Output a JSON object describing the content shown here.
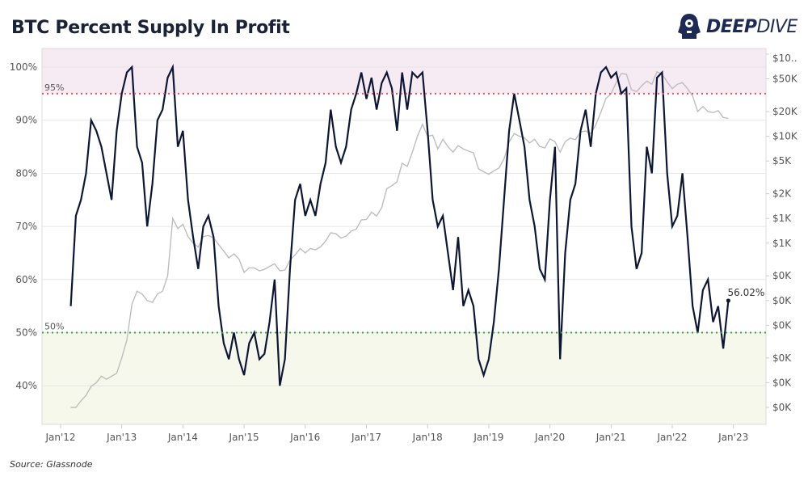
{
  "header": {
    "title": "BTC Percent Supply In Profit",
    "logo_text": "DEEPDIVE"
  },
  "footer": {
    "source": "Source: Glassnode"
  },
  "colors": {
    "profit_line": "#0e1636",
    "price_line": "#bdbdbd",
    "upper_band": "#f6ebf3",
    "lower_band": "#f5f8ea",
    "line_95": "#f0505a",
    "line_50": "#33aa33"
  },
  "chart_data": {
    "type": "line",
    "title": "BTC Percent Supply In Profit",
    "x_tick_labels": [
      "Jan'12",
      "Jan'13",
      "Jan'14",
      "Jan'15",
      "Jan'16",
      "Jan'17",
      "Jan'18",
      "Jan'19",
      "Jan'20",
      "Jan'21",
      "Jan'22",
      "Jan'23"
    ],
    "y_left": {
      "ticks": [
        "40%",
        "50%",
        "60%",
        "70%",
        "80%",
        "90%",
        "100%"
      ],
      "range": [
        34,
        104
      ],
      "grid": true
    },
    "y_right": {
      "scale": "log",
      "ticks": [
        "$10..",
        "$50K",
        "$20K",
        "$10K",
        "$5K",
        "$2K",
        "$1K",
        "$1K",
        "$0K",
        "$0K",
        "$0K",
        "$0K",
        "$0K",
        "$0K"
      ]
    },
    "reference_lines": [
      {
        "value": 95,
        "label": "95%"
      },
      {
        "value": 50,
        "label": "50%"
      }
    ],
    "last_value_label": "56.02%",
    "start": "2012-03",
    "frequency": "monthly",
    "series": [
      {
        "axis": "left",
        "values": [
          55,
          72,
          75,
          80,
          90,
          88,
          85,
          80,
          75,
          88,
          95,
          99,
          100,
          85,
          82,
          70,
          78,
          90,
          92,
          98,
          100,
          85,
          88,
          75,
          68,
          62,
          70,
          72,
          68,
          55,
          48,
          45,
          50,
          45,
          42,
          48,
          50,
          45,
          46,
          52,
          60,
          40,
          45,
          62,
          75,
          78,
          72,
          75,
          72,
          78,
          82,
          92,
          85,
          82,
          85,
          92,
          95,
          99,
          94,
          98,
          92,
          97,
          99,
          96,
          88,
          99,
          92,
          99,
          98,
          99,
          88,
          75,
          70,
          72,
          65,
          58,
          68,
          55,
          58,
          55,
          45,
          42,
          45,
          52,
          62,
          75,
          88,
          95,
          90,
          85,
          75,
          70,
          62,
          60,
          75,
          85,
          45,
          65,
          75,
          78,
          88,
          92,
          85,
          95,
          99,
          100,
          98,
          99,
          95,
          96,
          70,
          62,
          65,
          85,
          80,
          98,
          99,
          80,
          70,
          72,
          80,
          68,
          55,
          50,
          58,
          60,
          52,
          55,
          47,
          56.02
        ]
      },
      {
        "axis": "right",
        "values": [
          5,
          5,
          6,
          7,
          9,
          10,
          12,
          11,
          12,
          13,
          20,
          33,
          90,
          130,
          120,
          100,
          95,
          120,
          130,
          200,
          1000,
          750,
          850,
          600,
          500,
          450,
          600,
          620,
          580,
          480,
          400,
          330,
          370,
          320,
          220,
          250,
          250,
          230,
          240,
          260,
          280,
          230,
          235,
          310,
          360,
          430,
          380,
          430,
          415,
          450,
          530,
          670,
          650,
          575,
          610,
          700,
          740,
          960,
          970,
          1190,
          1070,
          1350,
          2300,
          2500,
          2800,
          4700,
          4300,
          6400,
          10000,
          14000,
          10000,
          10300,
          7000,
          9200,
          7500,
          6400,
          7700,
          7000,
          6600,
          6300,
          4000,
          3700,
          3450,
          3800,
          4100,
          5300,
          8500,
          10800,
          10000,
          9600,
          8300,
          9200,
          7500,
          7200,
          9300,
          8600,
          6400,
          8600,
          9500,
          9100,
          11300,
          11600,
          10800,
          13800,
          19700,
          29000,
          33000,
          45000,
          58000,
          57000,
          37000,
          35000,
          41000,
          47000,
          43000,
          61000,
          57000,
          46000,
          38000,
          43000,
          45000,
          38000,
          31000,
          20000,
          23000,
          20000,
          19400,
          20500,
          17000,
          16500
        ]
      }
    ]
  }
}
